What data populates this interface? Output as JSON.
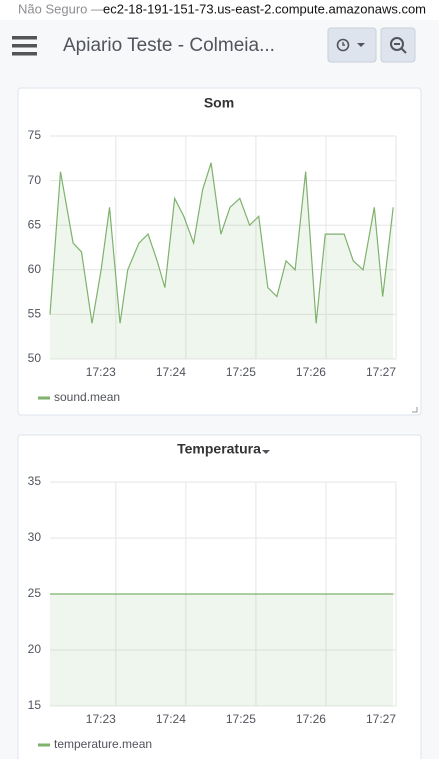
{
  "browser": {
    "security": "Não Seguro —",
    "url": "ec2-18-191-151-73.us-east-2.compute.amazonaws.com"
  },
  "header": {
    "title": "Apiario Teste - Colmeia..."
  },
  "chart_data": [
    {
      "type": "line",
      "title": "Som",
      "x": [
        1042.06,
        1042.21,
        1042.39,
        1042.51,
        1042.66,
        1042.79,
        1042.91,
        1043.06,
        1043.17,
        1043.33,
        1043.46,
        1043.59,
        1043.7,
        1043.84,
        1043.97,
        1044.11,
        1044.24,
        1044.36,
        1044.5,
        1044.63,
        1044.77,
        1044.91,
        1045.04,
        1045.17,
        1045.3,
        1045.43,
        1045.56,
        1045.71,
        1045.86,
        1045.99,
        1046.13,
        1046.26,
        1046.39,
        1046.53,
        1046.69,
        1046.81,
        1046.96
      ],
      "series": [
        {
          "name": "sound.mean",
          "color": "#7eb26d",
          "values": [
            55,
            71,
            63,
            62,
            54,
            60,
            67,
            54,
            60,
            63,
            64,
            61,
            58,
            68,
            66,
            63,
            69,
            72,
            64,
            67,
            68,
            65,
            66,
            58,
            57,
            61,
            60,
            71,
            54,
            64,
            64,
            64,
            61,
            60,
            67,
            57,
            67
          ]
        }
      ],
      "xlim": [
        1042.06,
        1047
      ],
      "xticks": [
        {
          "value": 1043,
          "label": "17:23"
        },
        {
          "value": 1044,
          "label": "17:24"
        },
        {
          "value": 1045,
          "label": "17:25"
        },
        {
          "value": 1046,
          "label": "17:26"
        },
        {
          "value": 1047,
          "label": "17:27"
        }
      ],
      "ylim": [
        50,
        75
      ],
      "yticks": [
        50,
        55,
        60,
        65,
        70,
        75
      ],
      "grid": true
    },
    {
      "type": "line",
      "title": "Temperatura",
      "x": [
        1042.06,
        1046.96
      ],
      "series": [
        {
          "name": "temperature.mean",
          "color": "#7eb26d",
          "values": [
            25,
            25
          ]
        }
      ],
      "xlim": [
        1042.06,
        1047
      ],
      "xticks": [
        {
          "value": 1043,
          "label": "17:23"
        },
        {
          "value": 1044,
          "label": "17:24"
        },
        {
          "value": 1045,
          "label": "17:25"
        },
        {
          "value": 1046,
          "label": "17:26"
        },
        {
          "value": 1047,
          "label": "17:27"
        }
      ],
      "ylim": [
        15,
        35
      ],
      "yticks": [
        15,
        20,
        25,
        30,
        35
      ],
      "grid": true
    }
  ]
}
